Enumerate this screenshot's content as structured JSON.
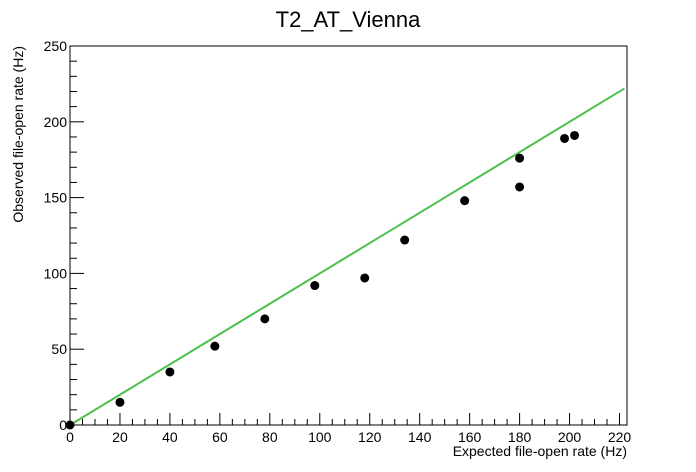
{
  "chart_data": {
    "type": "scatter",
    "title": "T2_AT_Vienna",
    "xlabel": "Expected file-open rate (Hz)",
    "ylabel": "Observed file-open rate (Hz)",
    "xlim": [
      0,
      223
    ],
    "ylim": [
      0,
      250
    ],
    "x_ticks": [
      0,
      20,
      40,
      60,
      80,
      100,
      120,
      140,
      160,
      180,
      200,
      220
    ],
    "y_ticks": [
      0,
      50,
      100,
      150,
      200,
      250
    ],
    "points": [
      {
        "x": 0,
        "y": 0
      },
      {
        "x": 20,
        "y": 15
      },
      {
        "x": 40,
        "y": 35
      },
      {
        "x": 58,
        "y": 52
      },
      {
        "x": 78,
        "y": 70
      },
      {
        "x": 98,
        "y": 92
      },
      {
        "x": 118,
        "y": 97
      },
      {
        "x": 134,
        "y": 122
      },
      {
        "x": 158,
        "y": 148
      },
      {
        "x": 180,
        "y": 157
      },
      {
        "x": 180,
        "y": 176
      },
      {
        "x": 198,
        "y": 189
      },
      {
        "x": 202,
        "y": 191
      }
    ],
    "reference_line": {
      "x": [
        0,
        222
      ],
      "y": [
        0,
        222
      ]
    },
    "grid": false,
    "colors": {
      "points": "#000000",
      "reference_line": "#4cc04c",
      "frame": "#000000"
    }
  }
}
